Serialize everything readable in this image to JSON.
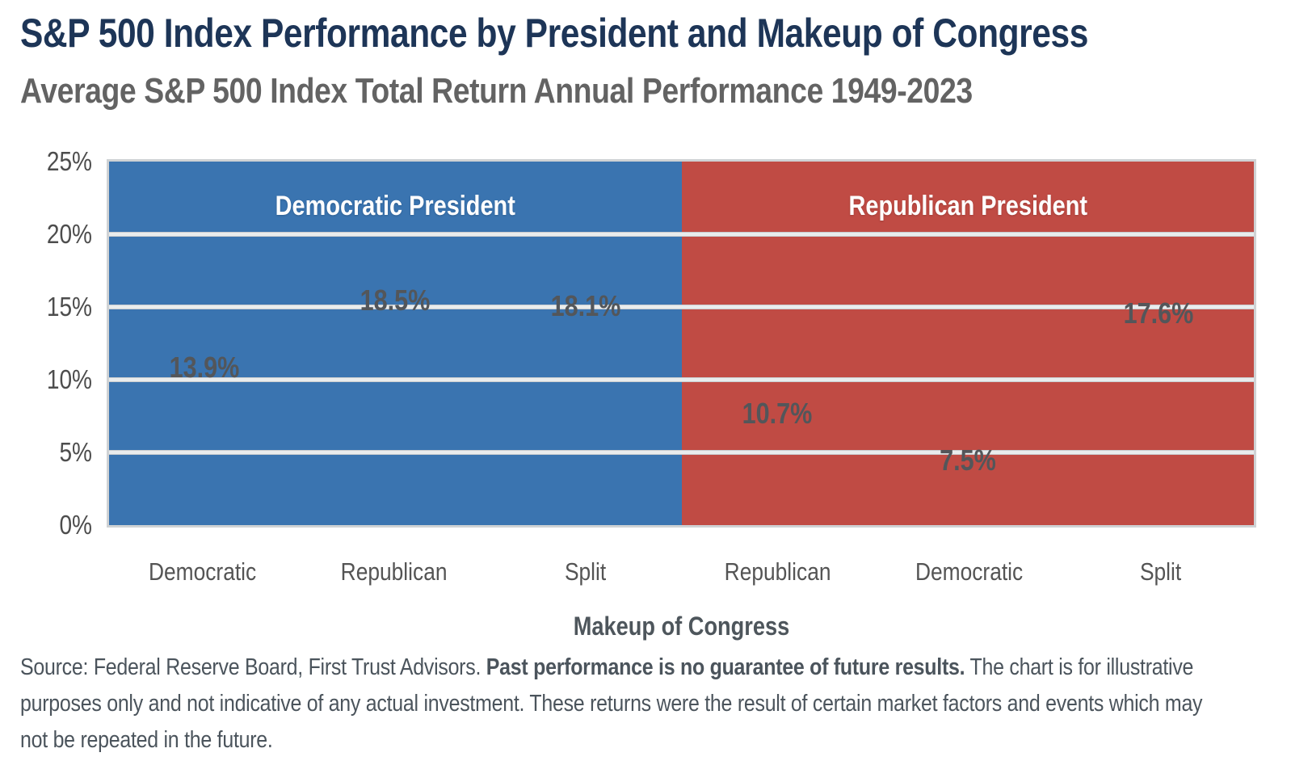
{
  "title": "S&P 500 Index Performance by President and Makeup of Congress",
  "subtitle": "Average S&P 500 Index Total Return Annual Performance 1949-2023",
  "chart_data": {
    "type": "bar",
    "title": "S&P 500 Index Performance by President and Makeup of Congress",
    "subtitle": "Average S&P 500 Index Total Return Annual Performance 1949-2023",
    "xlabel": "Makeup of Congress",
    "ylabel": "",
    "ylim": [
      0,
      25
    ],
    "ytick_step": 5,
    "grid": true,
    "legend_position": "none",
    "categories": [
      "Democratic",
      "Republican",
      "Split",
      "Republican",
      "Democratic",
      "Split"
    ],
    "values": [
      13.9,
      18.5,
      18.1,
      10.7,
      7.5,
      17.6
    ],
    "value_labels": [
      "13.9%",
      "18.5%",
      "18.1%",
      "10.7%",
      "7.5%",
      "17.6%"
    ],
    "groups": [
      {
        "label": "Democratic President",
        "color": "#3A74B0",
        "categories": [
          "Democratic",
          "Republican",
          "Split"
        ],
        "values": [
          13.9,
          18.5,
          18.1
        ]
      },
      {
        "label": "Republican President",
        "color": "#C04B44",
        "categories": [
          "Republican",
          "Democratic",
          "Split"
        ],
        "values": [
          10.7,
          7.5,
          17.6
        ]
      }
    ]
  },
  "y_axis_ticks": [
    "0%",
    "5%",
    "10%",
    "15%",
    "20%",
    "25%"
  ],
  "colors": {
    "title_navy": "#1d3557",
    "subtitle_gray": "#636363",
    "democrat_blue": "#3A74B0",
    "republican_red": "#C04B44",
    "gridline": "#e9eced",
    "axis_text": "#4d4d4d",
    "value_label_gray": "#53565a",
    "footnote_gray": "#4b545c"
  },
  "footnote": {
    "line1_regular": "Source: Federal Reserve Board, First Trust Advisors. ",
    "line1_bold": "Past performance is no guarantee of future results.",
    "line1_tail": " The chart is for illustrative",
    "line2": "purposes only and not indicative of any actual investment. These returns were the result of certain market factors and events which may",
    "line3": "not be repeated in the future."
  }
}
